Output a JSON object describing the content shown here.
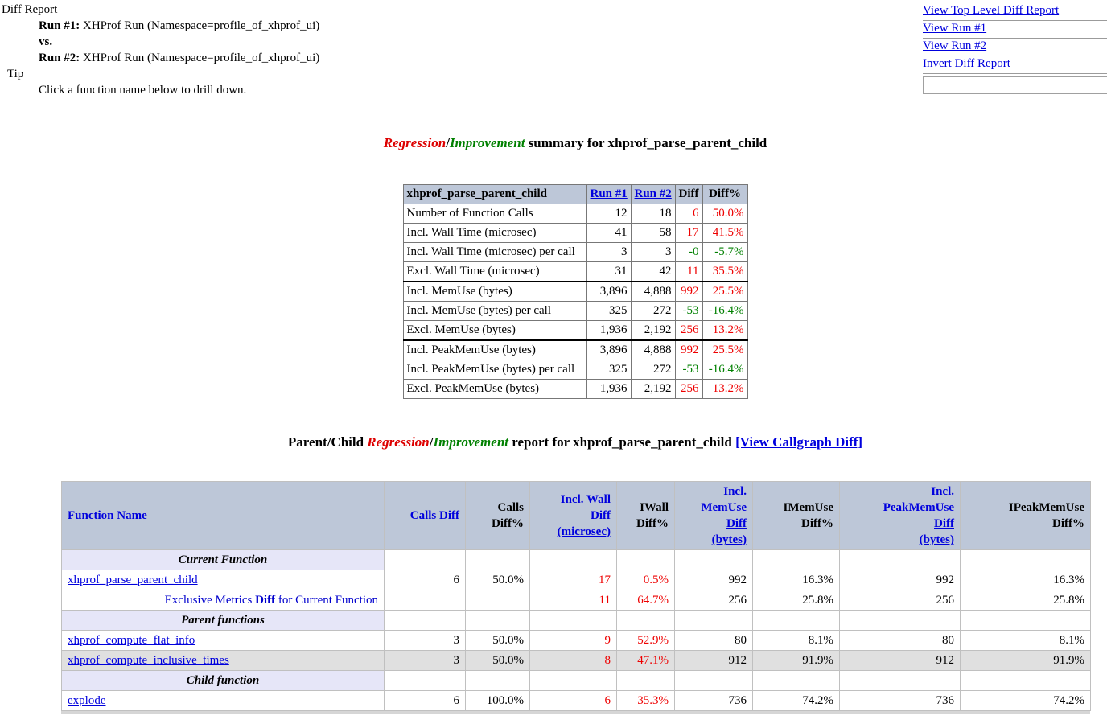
{
  "header": {
    "title": "Diff Report",
    "run1_label": "Run #1:",
    "run1_value": "XHProf Run (Namespace=profile_of_xhprof_ui)",
    "vs_label": "vs.",
    "run2_label": "Run #2:",
    "run2_value": "XHProf Run (Namespace=profile_of_xhprof_ui)",
    "tip_label": "Tip",
    "tip_text": "Click a function name below to drill down."
  },
  "nav": {
    "links": [
      "View Top Level Diff Report",
      "View Run #1",
      "View Run #2",
      "Invert Diff Report"
    ],
    "input_value": ""
  },
  "summary_title": {
    "regression": "Regression",
    "slash": "/",
    "improvement": "Improvement",
    "rest": " summary for xhprof_parse_parent_child"
  },
  "summary_table": {
    "columns": [
      "xhprof_parse_parent_child",
      "Run #1",
      "Run #2",
      "Diff",
      "Diff%"
    ],
    "rows": [
      {
        "label": "Number of Function Calls",
        "run1": "12",
        "run2": "18",
        "diff": "6",
        "diff_pct": "50.0%",
        "color": "red",
        "group_end": false
      },
      {
        "label": "Incl. Wall Time (microsec)",
        "run1": "41",
        "run2": "58",
        "diff": "17",
        "diff_pct": "41.5%",
        "color": "red",
        "group_end": false
      },
      {
        "label": "Incl. Wall Time (microsec) per call",
        "run1": "3",
        "run2": "3",
        "diff": "-0",
        "diff_pct": "-5.7%",
        "color": "green",
        "group_end": false
      },
      {
        "label": "Excl. Wall Time (microsec)",
        "run1": "31",
        "run2": "42",
        "diff": "11",
        "diff_pct": "35.5%",
        "color": "red",
        "group_end": true
      },
      {
        "label": "Incl. MemUse (bytes)",
        "run1": "3,896",
        "run2": "4,888",
        "diff": "992",
        "diff_pct": "25.5%",
        "color": "red",
        "group_end": false
      },
      {
        "label": "Incl. MemUse (bytes) per call",
        "run1": "325",
        "run2": "272",
        "diff": "-53",
        "diff_pct": "-16.4%",
        "color": "green",
        "group_end": false
      },
      {
        "label": "Excl. MemUse (bytes)",
        "run1": "1,936",
        "run2": "2,192",
        "diff": "256",
        "diff_pct": "13.2%",
        "color": "red",
        "group_end": true
      },
      {
        "label": "Incl. PeakMemUse (bytes)",
        "run1": "3,896",
        "run2": "4,888",
        "diff": "992",
        "diff_pct": "25.5%",
        "color": "red",
        "group_end": false
      },
      {
        "label": "Incl. PeakMemUse (bytes) per call",
        "run1": "325",
        "run2": "272",
        "diff": "-53",
        "diff_pct": "-16.4%",
        "color": "green",
        "group_end": false
      },
      {
        "label": "Excl. PeakMemUse (bytes)",
        "run1": "1,936",
        "run2": "2,192",
        "diff": "256",
        "diff_pct": "13.2%",
        "color": "red",
        "group_end": false
      }
    ]
  },
  "report_title": {
    "prefix": "Parent/Child ",
    "regression": "Regression",
    "slash": "/",
    "improvement": "Improvement",
    "rest": " report for xhprof_parse_parent_child ",
    "callgraph_link": "[View Callgraph Diff]"
  },
  "report_table": {
    "columns": [
      {
        "lines": [
          "Function Name"
        ],
        "link": true,
        "align": "left"
      },
      {
        "lines": [
          "Calls Diff"
        ],
        "link": true,
        "align": "right"
      },
      {
        "lines": [
          "Calls",
          "Diff%"
        ],
        "link": false,
        "align": "right"
      },
      {
        "lines": [
          "Incl. Wall",
          "Diff",
          "(microsec)"
        ],
        "link": true,
        "align": "right"
      },
      {
        "lines": [
          "IWall",
          "Diff%"
        ],
        "link": false,
        "align": "right"
      },
      {
        "lines": [
          "Incl.",
          "MemUse",
          "Diff",
          "(bytes)"
        ],
        "link": true,
        "align": "right"
      },
      {
        "lines": [
          "IMemUse",
          "Diff%"
        ],
        "link": false,
        "align": "right"
      },
      {
        "lines": [
          "Incl.",
          "PeakMemUse",
          "Diff",
          "(bytes)"
        ],
        "link": true,
        "align": "right"
      },
      {
        "lines": [
          "IPeakMemUse",
          "Diff%"
        ],
        "link": false,
        "align": "right"
      }
    ],
    "red_cell_indices": [
      2,
      3
    ],
    "rows": [
      {
        "type": "section",
        "label": "Current Function"
      },
      {
        "type": "function",
        "name": "xhprof_parse_parent_child",
        "shaded": false,
        "cells": [
          "6",
          "50.0%",
          "17",
          "0.5%",
          "992",
          "16.3%",
          "992",
          "16.3%"
        ]
      },
      {
        "type": "exclusive",
        "parts": [
          "Exclusive Metrics ",
          "Diff",
          " for Current Function"
        ],
        "shaded": false,
        "cells": [
          "",
          "",
          "11",
          "64.7%",
          "256",
          "25.8%",
          "256",
          "25.8%"
        ]
      },
      {
        "type": "section",
        "label": "Parent functions"
      },
      {
        "type": "function",
        "name": "xhprof_compute_flat_info",
        "shaded": false,
        "cells": [
          "3",
          "50.0%",
          "9",
          "52.9%",
          "80",
          "8.1%",
          "80",
          "8.1%"
        ]
      },
      {
        "type": "function",
        "name": "xhprof_compute_inclusive_times",
        "shaded": true,
        "cells": [
          "3",
          "50.0%",
          "8",
          "47.1%",
          "912",
          "91.9%",
          "912",
          "91.9%"
        ]
      },
      {
        "type": "section",
        "label": "Child function"
      },
      {
        "type": "function",
        "name": "explode",
        "shaded": false,
        "cells": [
          "6",
          "100.0%",
          "6",
          "35.3%",
          "736",
          "74.2%",
          "736",
          "74.2%"
        ]
      }
    ]
  },
  "colors": {
    "regression_red": "#dd0000",
    "improvement_green": "#008000",
    "link_blue": "#0000dd",
    "table_header_bg": "#bdc7d8",
    "section_row_bg": "#e6e6f8",
    "shaded_row_bg": "#e0e0e0"
  }
}
